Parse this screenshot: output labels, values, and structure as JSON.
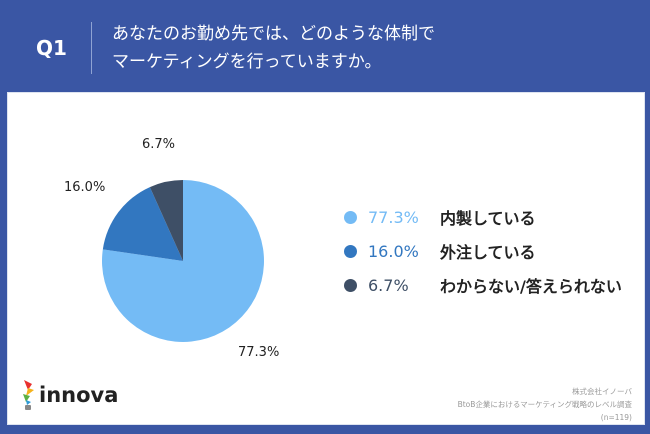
{
  "header": {
    "question_no": "Q1",
    "title_line1": "あなたのお勤め先では、どのような体制で",
    "title_line2": "マーケティングを行っていますか。"
  },
  "chart_data": {
    "type": "pie",
    "start": "top",
    "direction": "clockwise",
    "categories": [
      "内製している",
      "外注している",
      "わからない/答えられない"
    ],
    "values": [
      77.3,
      16.0,
      6.7
    ],
    "data_labels": [
      "77.3%",
      "16.0%",
      "6.7%"
    ],
    "colors": [
      "#74bbf5",
      "#3277c0",
      "#3e4f66"
    ],
    "legend_placement": "right"
  },
  "legend": [
    {
      "pct": "77.3%",
      "label": "内製している",
      "color": "#74bbf5"
    },
    {
      "pct": "16.0%",
      "label": "外注している",
      "color": "#3277c0"
    },
    {
      "pct": "6.7%",
      "label": "わからない/答えられない",
      "color": "#3e4f66"
    }
  ],
  "footer": {
    "logo": "innova",
    "company": "株式会社イノーバ",
    "survey": "BtoB企業におけるマーケティング戦略のレベル調査",
    "n": "(n=119)"
  }
}
